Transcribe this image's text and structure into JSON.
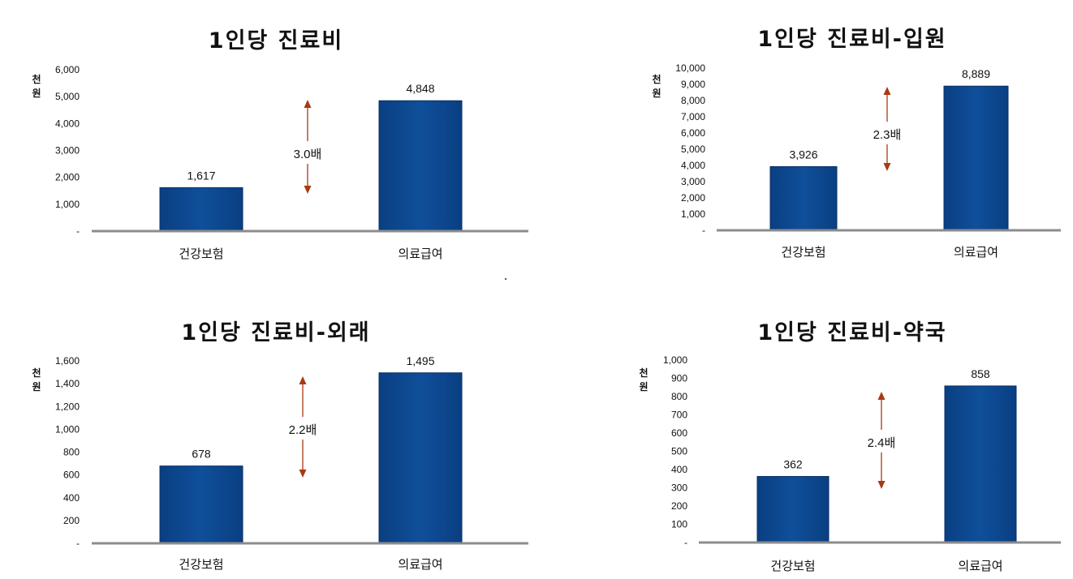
{
  "chart_data": [
    {
      "type": "bar",
      "title": "1인당 진료비",
      "ylabel": "천원",
      "categories": [
        "건강보험",
        "의료급여"
      ],
      "values": [
        1617,
        4848
      ],
      "value_labels": [
        "1,617",
        "4,848"
      ],
      "yticks": [
        "-",
        "1,000",
        "2,000",
        "3,000",
        "4,000",
        "5,000",
        "6,000"
      ],
      "ylim": [
        0,
        6000
      ],
      "ratio_label": "3.0배",
      "bar_color": "#0f4f9a",
      "arrow_color": "#a83a12"
    },
    {
      "type": "bar",
      "title": "1인당 진료비-입원",
      "ylabel": "천원",
      "categories": [
        "건강보험",
        "의료급여"
      ],
      "values": [
        3926,
        8889
      ],
      "value_labels": [
        "3,926",
        "8,889"
      ],
      "yticks": [
        "-",
        "1,000",
        "2,000",
        "3,000",
        "4,000",
        "5,000",
        "6,000",
        "7,000",
        "8,000",
        "9,000",
        "10,000"
      ],
      "ylim": [
        0,
        10000
      ],
      "ratio_label": "2.3배",
      "bar_color": "#0f4f9a",
      "arrow_color": "#a83a12"
    },
    {
      "type": "bar",
      "title": "1인당 진료비-외래",
      "ylabel": "천원",
      "categories": [
        "건강보험",
        "의료급여"
      ],
      "values": [
        678,
        1495
      ],
      "value_labels": [
        "678",
        "1,495"
      ],
      "yticks": [
        "-",
        "200",
        "400",
        "600",
        "800",
        "1,000",
        "1,200",
        "1,400",
        "1,600"
      ],
      "ylim": [
        0,
        1600
      ],
      "ratio_label": "2.2배",
      "bar_color": "#0f4f9a",
      "arrow_color": "#a83a12"
    },
    {
      "type": "bar",
      "title": "1인당 진료비-약국",
      "ylabel": "천원",
      "categories": [
        "건강보험",
        "의료급여"
      ],
      "values": [
        362,
        858
      ],
      "value_labels": [
        "362",
        "858"
      ],
      "yticks": [
        "-",
        "100",
        "200",
        "300",
        "400",
        "500",
        "600",
        "700",
        "800",
        "900",
        "1,000"
      ],
      "ylim": [
        0,
        1000
      ],
      "ratio_label": "2.4배",
      "bar_color": "#0f4f9a",
      "arrow_color": "#a83a12"
    }
  ]
}
